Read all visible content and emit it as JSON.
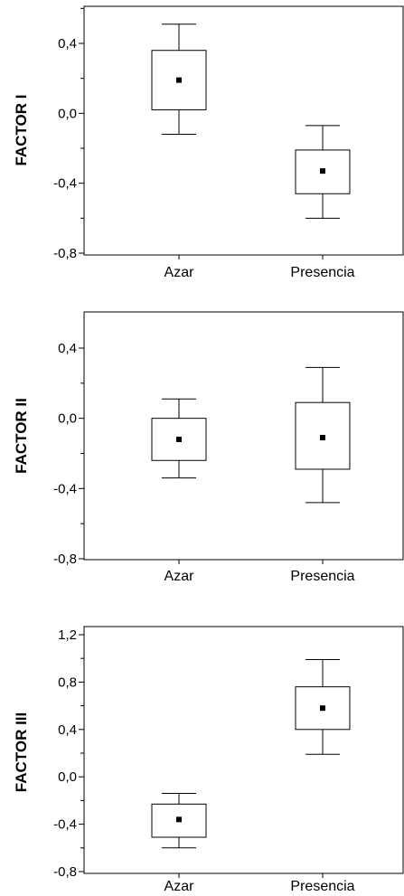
{
  "chart_data": [
    {
      "type": "box",
      "ylabel": "FACTOR I",
      "categories": [
        "Azar",
        "Presencia"
      ],
      "ylim": [
        -0.8,
        0.6
      ],
      "yticks": [
        0.4,
        0.0,
        -0.4,
        -0.8
      ],
      "ytick_labels": [
        "0,4",
        "0,0",
        "-0,4",
        "-0,8"
      ],
      "boxes": [
        {
          "category": "Azar",
          "whisker_low": -0.12,
          "q1": 0.02,
          "mean": 0.19,
          "q3": 0.36,
          "whisker_high": 0.51
        },
        {
          "category": "Presencia",
          "whisker_low": -0.6,
          "q1": -0.46,
          "mean": -0.33,
          "q3": -0.21,
          "whisker_high": -0.07
        }
      ]
    },
    {
      "type": "box",
      "ylabel": "FACTOR II",
      "categories": [
        "Azar",
        "Presencia"
      ],
      "ylim": [
        -0.8,
        0.6
      ],
      "yticks": [
        0.4,
        0.0,
        -0.4,
        -0.8
      ],
      "ytick_labels": [
        "0,4",
        "0,0",
        "-0,4",
        "-0,8"
      ],
      "boxes": [
        {
          "category": "Azar",
          "whisker_low": -0.34,
          "q1": -0.24,
          "mean": -0.12,
          "q3": 0.0,
          "whisker_high": 0.11
        },
        {
          "category": "Presencia",
          "whisker_low": -0.48,
          "q1": -0.29,
          "mean": -0.11,
          "q3": 0.09,
          "whisker_high": 0.29
        }
      ]
    },
    {
      "type": "box",
      "ylabel": "FACTOR III",
      "categories": [
        "Azar",
        "Presencia"
      ],
      "ylim": [
        -0.8,
        1.25
      ],
      "yticks": [
        1.2,
        0.8,
        0.4,
        0.0,
        -0.4,
        -0.8
      ],
      "ytick_labels": [
        "1,2",
        "0,8",
        "0,4",
        "0,0",
        "-0,4",
        "-0,8"
      ],
      "boxes": [
        {
          "category": "Azar",
          "whisker_low": -0.6,
          "q1": -0.51,
          "mean": -0.36,
          "q3": -0.23,
          "whisker_high": -0.14
        },
        {
          "category": "Presencia",
          "whisker_low": 0.19,
          "q1": 0.4,
          "mean": 0.58,
          "q3": 0.76,
          "whisker_high": 0.99
        }
      ]
    }
  ]
}
